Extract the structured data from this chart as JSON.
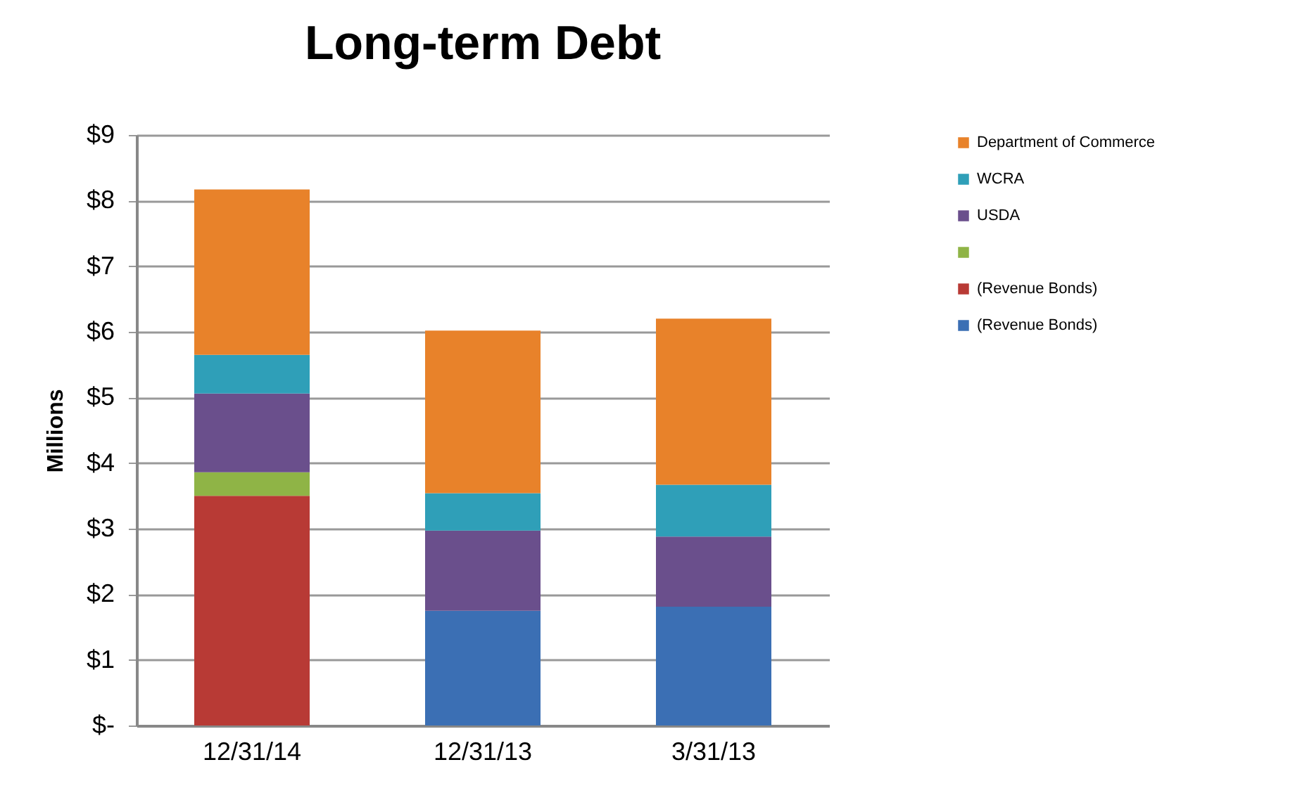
{
  "chart_data": {
    "type": "bar",
    "title": "Long-term Debt",
    "ylabel": "Millions",
    "categories": [
      "12/31/14",
      "12/31/13",
      "3/31/13"
    ],
    "stacked": true,
    "series": [
      {
        "name": "(Revenue Bonds)",
        "color": "#3b6fb4",
        "values": [
          null,
          1.75,
          1.81
        ]
      },
      {
        "name": "(Revenue Bonds)",
        "color": "#b83a35",
        "values": [
          3.5,
          null,
          null
        ]
      },
      {
        "color": "#8fb446",
        "values": [
          0.36,
          null,
          null
        ]
      },
      {
        "name": "USDA",
        "color": "#6a4f8c",
        "values": [
          1.2,
          1.22,
          1.07
        ]
      },
      {
        "name": "WCRA",
        "color": "#2f9fb8",
        "values": [
          0.59,
          0.57,
          0.79
        ]
      },
      {
        "name": "Department of Commerce",
        "color": "#e8822a",
        "values": [
          2.52,
          2.48,
          2.53
        ]
      }
    ],
    "ylim": [
      0,
      9
    ],
    "yticks": [
      {
        "value": 0,
        "label": "$-"
      },
      {
        "value": 1,
        "label": "$1"
      },
      {
        "value": 2,
        "label": "$2"
      },
      {
        "value": 3,
        "label": "$3"
      },
      {
        "value": 4,
        "label": "$4"
      },
      {
        "value": 5,
        "label": "$5"
      },
      {
        "value": 6,
        "label": "$6"
      },
      {
        "value": 7,
        "label": "$7"
      },
      {
        "value": 8,
        "label": "$8"
      },
      {
        "value": 9,
        "label": "$9"
      }
    ],
    "grid": "y",
    "legend": "right"
  }
}
